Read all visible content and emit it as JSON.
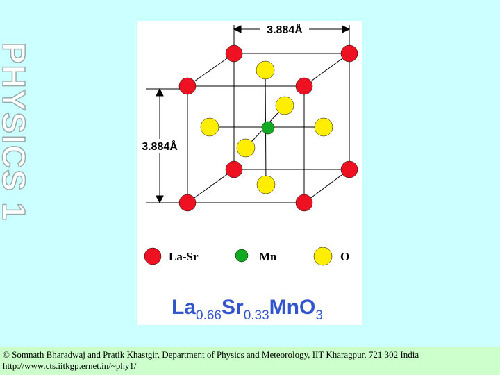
{
  "side_title": "PHYSICS 1",
  "figure": {
    "top_dimension": "3.884Å",
    "left_dimension": "3.884Å",
    "legend": [
      "La-Sr",
      "Mn",
      "O"
    ],
    "formula": {
      "la": "La",
      "la_sub": "0.66",
      "sr": "Sr",
      "sr_sub": "0.33",
      "mno": "MnO",
      "o_sub": "3"
    }
  },
  "footer": {
    "credit": "© Somnath Bharadwaj and Pratik Khastgir, Department of Physics and Meteorology, IIT Kharagpur, 721 302 India",
    "url": "http://www.cts.iitkgp.ernet.in/~phy1/"
  }
}
